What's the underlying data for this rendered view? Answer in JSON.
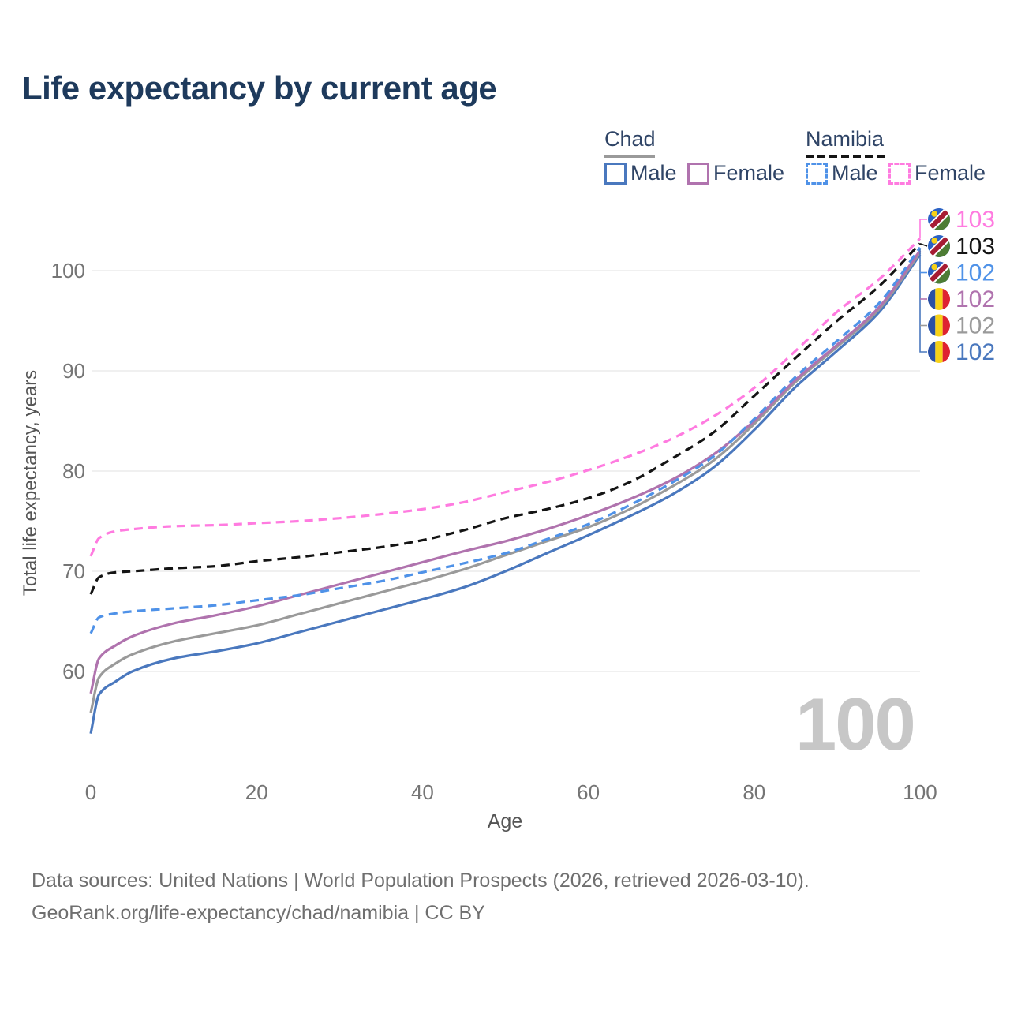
{
  "title": "Life expectancy by current age",
  "watermark": "100",
  "legend": {
    "groups": [
      {
        "name": "Chad",
        "style": "solid",
        "underline_color": "#9a9a9a",
        "items": [
          {
            "label": "Male",
            "color": "#4a78be"
          },
          {
            "label": "Female",
            "color": "#b073ae"
          }
        ]
      },
      {
        "name": "Namibia",
        "style": "dashed",
        "underline_color": "#151515",
        "items": [
          {
            "label": "Male",
            "color": "#4f92e8"
          },
          {
            "label": "Female",
            "color": "#ff7be0"
          }
        ]
      }
    ]
  },
  "chart_data": {
    "type": "line",
    "title": "Life expectancy by current age",
    "xlabel": "Age",
    "ylabel": "Total life expectancy, years",
    "x_ticks": [
      0,
      20,
      40,
      60,
      80,
      100
    ],
    "y_ticks": [
      60,
      70,
      80,
      90,
      100
    ],
    "xlim": [
      0,
      100
    ],
    "ylim": [
      53,
      104
    ],
    "grid": "horizontal",
    "x": [
      0,
      1,
      3,
      5,
      10,
      15,
      20,
      25,
      30,
      35,
      40,
      45,
      50,
      55,
      60,
      65,
      70,
      75,
      80,
      85,
      90,
      95,
      100
    ],
    "series": [
      {
        "name": "Chad Male",
        "country": "Chad",
        "sex": "Male",
        "dash": "solid",
        "color": "#4a78be",
        "values": [
          53.8,
          57.7,
          59.0,
          60.0,
          61.3,
          62.0,
          62.8,
          63.9,
          65.0,
          66.1,
          67.2,
          68.4,
          70.0,
          71.8,
          73.6,
          75.5,
          77.6,
          80.3,
          84.1,
          88.4,
          92.0,
          95.8,
          101.6
        ]
      },
      {
        "name": "Chad",
        "country": "Chad",
        "sex": "Both sexes",
        "dash": "solid",
        "color": "#9a9a9a",
        "values": [
          55.9,
          59.4,
          60.8,
          61.7,
          63.0,
          63.8,
          64.6,
          65.7,
          66.8,
          67.9,
          69.0,
          70.2,
          71.6,
          73.0,
          74.4,
          76.2,
          78.4,
          81.0,
          84.7,
          88.9,
          92.4,
          96.1,
          101.8
        ]
      },
      {
        "name": "Chad Female",
        "country": "Chad",
        "sex": "Female",
        "dash": "solid",
        "color": "#b073ae",
        "values": [
          57.8,
          61.3,
          62.6,
          63.5,
          64.8,
          65.6,
          66.5,
          67.6,
          68.7,
          69.8,
          70.9,
          72.0,
          73.0,
          74.2,
          75.6,
          77.2,
          79.1,
          81.6,
          85.0,
          89.1,
          92.6,
          96.3,
          102.0
        ]
      },
      {
        "name": "Namibia Male",
        "country": "Namibia",
        "sex": "Male",
        "dash": "dashed",
        "color": "#4f92e8",
        "values": [
          63.8,
          65.4,
          65.8,
          66.0,
          66.3,
          66.6,
          67.1,
          67.6,
          68.3,
          69.0,
          69.9,
          70.8,
          71.8,
          73.2,
          74.7,
          76.6,
          78.8,
          81.4,
          85.2,
          89.4,
          93.0,
          96.7,
          102.3
        ]
      },
      {
        "name": "Namibia",
        "country": "Namibia",
        "sex": "Both sexes",
        "dash": "dashed",
        "color": "#141414",
        "values": [
          67.7,
          69.4,
          69.9,
          70.0,
          70.3,
          70.5,
          71.0,
          71.4,
          71.9,
          72.4,
          73.1,
          74.1,
          75.3,
          76.2,
          77.3,
          78.9,
          81.2,
          83.8,
          87.5,
          91.3,
          95.0,
          98.4,
          102.7
        ]
      },
      {
        "name": "Namibia Female",
        "country": "Namibia",
        "sex": "Female",
        "dash": "dashed",
        "color": "#ff7be0",
        "values": [
          71.5,
          73.3,
          74.0,
          74.2,
          74.5,
          74.6,
          74.8,
          75.0,
          75.3,
          75.7,
          76.2,
          76.9,
          77.9,
          78.9,
          80.1,
          81.5,
          83.2,
          85.4,
          88.3,
          92.0,
          95.9,
          99.1,
          103.2
        ]
      }
    ],
    "end_labels": [
      {
        "value": "103",
        "color": "#ff7be0",
        "flag": "namibia",
        "series": "Namibia Female"
      },
      {
        "value": "103",
        "color": "#141414",
        "flag": "namibia",
        "series": "Namibia"
      },
      {
        "value": "102",
        "color": "#4f92e8",
        "flag": "namibia",
        "series": "Namibia Male"
      },
      {
        "value": "102",
        "color": "#b073ae",
        "flag": "chad",
        "series": "Chad Female"
      },
      {
        "value": "102",
        "color": "#9a9a9a",
        "flag": "chad",
        "series": "Chad"
      },
      {
        "value": "102",
        "color": "#4a78be",
        "flag": "chad",
        "series": "Chad Male"
      }
    ],
    "legend_position": "top-right"
  },
  "colors": {
    "grid": "#e7e7e7",
    "axis_tick_text": "#757575",
    "axis_title_text": "#555555",
    "title": "#1e3a5c",
    "watermark": "#c7c7c7",
    "footer": "#6f6f6f"
  },
  "flag_colors": {
    "chad": {
      "blue": "#2a50a5",
      "yellow": "#f7d117",
      "red": "#de2331"
    },
    "namibia": {
      "blue": "#2b62c4",
      "white": "#ffffff",
      "red": "#a61c33",
      "green": "#4d7c34",
      "sun": "#f7d117"
    }
  },
  "footer": {
    "line1": "Data sources: United Nations | World Population Prospects (2026, retrieved 2026-03-10).",
    "line2": "GeoRank.org/life-expectancy/chad/namibia | CC BY"
  }
}
